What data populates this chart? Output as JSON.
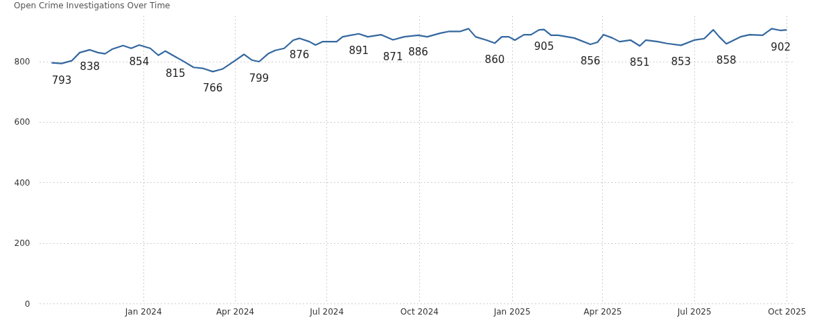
{
  "chart_data": {
    "type": "line",
    "title": "Open Crime Investigations Over Time",
    "x": [
      "2023-10-02",
      "2023-10-12",
      "2023-10-22",
      "2023-10-30",
      "2023-11-09",
      "2023-11-17",
      "2023-11-24",
      "2023-12-01",
      "2023-12-12",
      "2023-12-20",
      "2023-12-28",
      "2024-01-08",
      "2024-01-16",
      "2024-01-23",
      "2024-02-02",
      "2024-02-09",
      "2024-02-20",
      "2024-02-29",
      "2024-03-10",
      "2024-03-20",
      "2024-04-01",
      "2024-04-10",
      "2024-04-18",
      "2024-04-25",
      "2024-05-04",
      "2024-05-11",
      "2024-05-20",
      "2024-05-29",
      "2024-06-04",
      "2024-06-14",
      "2024-06-20",
      "2024-06-27",
      "2024-07-11",
      "2024-07-17",
      "2024-08-02",
      "2024-08-11",
      "2024-08-24",
      "2024-09-05",
      "2024-09-16",
      "2024-09-30",
      "2024-10-09",
      "2024-10-22",
      "2024-10-31",
      "2024-11-11",
      "2024-11-19",
      "2024-11-26",
      "2024-12-07",
      "2024-12-15",
      "2024-12-22",
      "2024-12-29",
      "2025-01-04",
      "2025-01-13",
      "2025-01-20",
      "2025-01-28",
      "2025-02-02",
      "2025-02-09",
      "2025-02-16",
      "2025-03-04",
      "2025-03-20",
      "2025-03-27",
      "2025-04-02",
      "2025-04-11",
      "2025-04-18",
      "2025-04-29",
      "2025-05-08",
      "2025-05-14",
      "2025-05-26",
      "2025-06-04",
      "2025-06-18",
      "2025-07-01",
      "2025-07-11",
      "2025-07-20",
      "2025-07-26",
      "2025-08-02",
      "2025-08-16",
      "2025-08-25",
      "2025-09-07",
      "2025-09-16",
      "2025-09-25",
      "2025-10-01"
    ],
    "series": [
      {
        "color": "#34689f",
        "values": [
          795,
          793,
          802,
          829,
          838,
          829,
          825,
          840,
          852,
          843,
          854,
          843,
          820,
          834,
          815,
          802,
          780,
          777,
          766,
          775,
          802,
          823,
          804,
          799,
          825,
          836,
          843,
          870,
          876,
          865,
          854,
          865,
          865,
          881,
          891,
          881,
          888,
          871,
          881,
          886,
          881,
          893,
          899,
          899,
          908,
          881,
          870,
          860,
          881,
          881,
          870,
          888,
          888,
          904,
          905,
          886,
          886,
          877,
          856,
          863,
          888,
          877,
          865,
          870,
          851,
          870,
          865,
          859,
          853,
          870,
          875,
          904,
          881,
          858,
          881,
          888,
          886,
          908,
          902,
          904
        ],
        "value_labels": [
          null,
          "793",
          null,
          null,
          "838",
          null,
          null,
          null,
          null,
          null,
          "854",
          null,
          null,
          null,
          "815",
          null,
          null,
          null,
          "766",
          null,
          null,
          null,
          null,
          "799",
          null,
          null,
          null,
          null,
          "876",
          null,
          null,
          null,
          null,
          null,
          "891",
          null,
          null,
          "871",
          null,
          "886",
          null,
          null,
          null,
          null,
          null,
          null,
          null,
          "860",
          null,
          null,
          null,
          null,
          null,
          null,
          "905",
          null,
          null,
          null,
          "856",
          null,
          null,
          null,
          null,
          null,
          "851",
          null,
          null,
          null,
          "853",
          null,
          null,
          null,
          null,
          "858",
          null,
          null,
          null,
          null,
          "902",
          null
        ]
      }
    ],
    "xlim": [
      "2023-09-20",
      "2025-10-09"
    ],
    "xticks": [
      {
        "value": "2024-01-01",
        "label": "Jan 2024"
      },
      {
        "value": "2024-04-01",
        "label": "Apr 2024"
      },
      {
        "value": "2024-07-01",
        "label": "Jul 2024"
      },
      {
        "value": "2024-10-01",
        "label": "Oct 2024"
      },
      {
        "value": "2025-01-01",
        "label": "Jan 2025"
      },
      {
        "value": "2025-04-01",
        "label": "Apr 2025"
      },
      {
        "value": "2025-07-01",
        "label": "Jul 2025"
      },
      {
        "value": "2025-10-01",
        "label": "Oct 2025"
      }
    ],
    "ylim": [
      0,
      950
    ],
    "yticks": [
      0,
      200,
      400,
      600,
      800
    ],
    "grid": true,
    "marker": "none",
    "line_style": "solid"
  }
}
